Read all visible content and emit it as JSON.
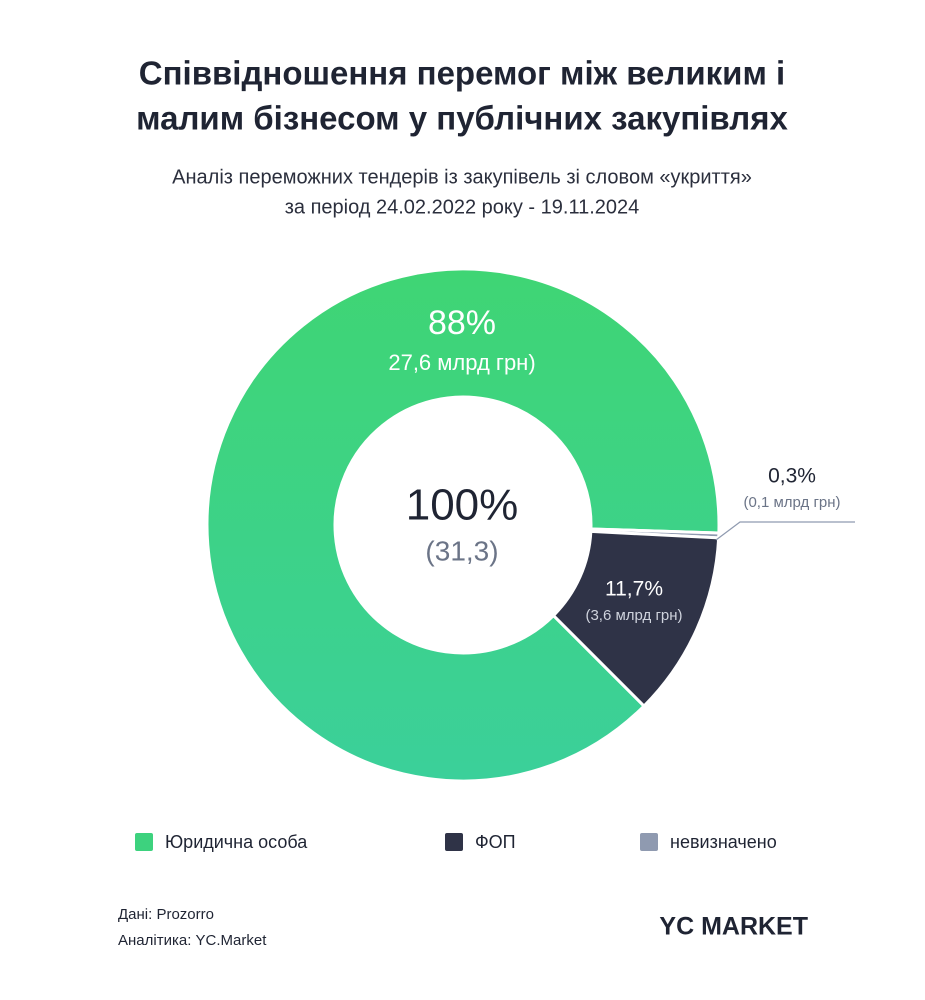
{
  "chart_data": {
    "type": "pie",
    "title": [
      "Співвідношення перемог між великим і",
      "малим бізнесом у публічних закупівлях"
    ],
    "subtitle": [
      "Аналіз переможних тендерів із закупівель зі словом «укриття»",
      "за період 24.02.2022 року - 19.11.2024"
    ],
    "categories": [
      "Юридична особа",
      "ФОП",
      "невизначено"
    ],
    "values": [
      88,
      11.7,
      0.3
    ],
    "value_labels": [
      "88%",
      "11,7%",
      "0,3%"
    ],
    "amount_labels": [
      "27,6 млрд грн)",
      "(3,6 млрд грн)",
      "(0,1 млрд грн)"
    ],
    "colors": [
      "#3dd27e",
      "#2f3347",
      "#8f9ab0"
    ],
    "center_label": "100%",
    "center_sublabel": "(31,3)",
    "source": "Дані:  Prozorro",
    "analytics": "Аналітика: YC.Market",
    "logo": "YC MARKET"
  }
}
